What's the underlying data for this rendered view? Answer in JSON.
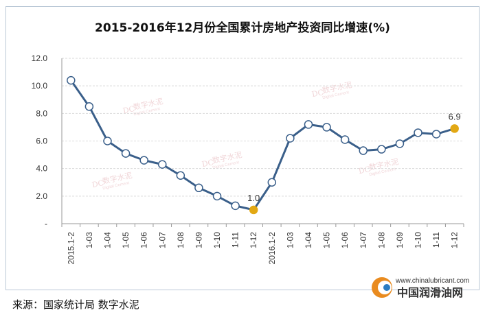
{
  "chart_data": {
    "type": "line",
    "title": "2015-2016年12月份全国累计房地产投资同比增速(%)",
    "categories": [
      "2015.1-2",
      "1-03",
      "1-04",
      "1-05",
      "1-06",
      "1-07",
      "1-08",
      "1-09",
      "1-10",
      "1-11",
      "1-12",
      "2016.1-2",
      "1-03",
      "1-04",
      "1-05",
      "1-06",
      "1-07",
      "1-08",
      "1-09",
      "1-10",
      "1-11",
      "1-12"
    ],
    "values": [
      10.4,
      8.5,
      6.0,
      5.1,
      4.6,
      4.3,
      3.5,
      2.6,
      2.0,
      1.3,
      1.0,
      3.0,
      6.2,
      7.2,
      7.0,
      6.1,
      5.3,
      5.4,
      5.8,
      6.6,
      6.5,
      6.9
    ],
    "y_ticks": [
      "-",
      "2.0",
      "4.0",
      "6.0",
      "8.0",
      "10.0",
      "12.0"
    ],
    "ylim": [
      0,
      12
    ],
    "grid": true,
    "highlight_indices": [
      10,
      21
    ],
    "data_labels": [
      {
        "index": 10,
        "text": "1.0"
      },
      {
        "index": 21,
        "text": "6.9"
      }
    ],
    "colors": {
      "line": "#3a5f8a",
      "marker_fill": "#ffffff",
      "highlight": "#e2a814",
      "grid": "#d9d9d9"
    }
  },
  "source_label": "来源：国家统计局 数字水泥",
  "watermark": {
    "text": "数字水泥",
    "sub": "Digital Cement"
  },
  "logo": {
    "url": "www.chinalubricant.com",
    "name": "中国润滑油网"
  }
}
